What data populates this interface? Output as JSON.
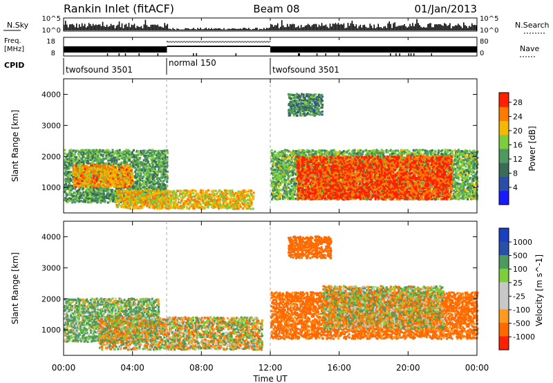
{
  "header": {
    "station": "Rankin Inlet (fitACF)",
    "beam": "Beam 08",
    "date": "01/Jan/2013"
  },
  "top_panels": {
    "nsky_label": "N.Sky",
    "nsky_ticks": [
      "10^5",
      "10^0"
    ],
    "nsearch_ticks": [
      "10^5",
      "10^0"
    ],
    "nsearch_label": "N.Search",
    "freq_label": "Freq.",
    "freq_unit": "[MHz]",
    "freq_ticks": [
      "18",
      "8"
    ],
    "nave_ticks": [
      "80",
      "0"
    ],
    "nave_label": "Nave",
    "cpid_label": "CPID",
    "cpid_segments": [
      {
        "label": "twofsound 3501",
        "start": 0,
        "end": 6
      },
      {
        "label": "normal 150",
        "start": 6,
        "end": 12
      },
      {
        "label": "twofsound 3501",
        "start": 12,
        "end": 24
      }
    ]
  },
  "x_axis": {
    "label": "Time UT",
    "ticks": [
      "00:00",
      "04:00",
      "08:00",
      "12:00",
      "16:00",
      "20:00",
      "00:00"
    ]
  },
  "panels": {
    "y_label": "Slant Range [km]",
    "y_ticks": [
      "1000",
      "2000",
      "3000",
      "4000"
    ],
    "power_label": "Power [dB]",
    "power_ticks": [
      "28",
      "24",
      "20",
      "16",
      "12",
      "8",
      "4"
    ],
    "velocity_label": "Velocity [m s^-1]",
    "velocity_ticks": [
      "1000",
      "500",
      "100",
      "25",
      "-25",
      "-100",
      "-500",
      "-1000"
    ]
  },
  "chart_data": [
    {
      "type": "heatmap",
      "title": "Power",
      "xlabel": "Time UT",
      "ylabel": "Slant Range [km]",
      "xlim": [
        0,
        24
      ],
      "ylim": [
        180,
        4500
      ],
      "colorbar": {
        "label": "Power [dB]",
        "range": [
          0,
          32
        ],
        "colors": [
          "#1a1aff",
          "#2a4fa8",
          "#3d6b5a",
          "#4e9a5e",
          "#7ccf3a",
          "#f5b800",
          "#ff7a00",
          "#ff2000"
        ]
      },
      "regions": [
        {
          "x0": 0.0,
          "x1": 6.0,
          "r0": 500,
          "r1": 2200,
          "level": 14
        },
        {
          "x0": 0.5,
          "x1": 4.0,
          "r0": 1000,
          "r1": 1700,
          "level": 24
        },
        {
          "x0": 3.0,
          "x1": 11.0,
          "r0": 300,
          "r1": 900,
          "level": 22
        },
        {
          "x0": 12.0,
          "x1": 24.0,
          "r0": 600,
          "r1": 2200,
          "level": 16
        },
        {
          "x0": 13.5,
          "x1": 22.5,
          "r0": 600,
          "r1": 2000,
          "level": 29
        },
        {
          "x0": 13.0,
          "x1": 15.0,
          "r0": 3300,
          "r1": 4000,
          "level": 12
        }
      ]
    },
    {
      "type": "heatmap",
      "title": "Velocity",
      "xlabel": "Time UT",
      "ylabel": "Slant Range [km]",
      "xlim": [
        0,
        24
      ],
      "ylim": [
        180,
        4500
      ],
      "colorbar": {
        "label": "Velocity [m s^-1]",
        "range": [
          -1000,
          1000
        ],
        "colors": [
          "#ff2000",
          "#ff6a00",
          "#ff9a20",
          "#c8c8c8",
          "#c8c8c8",
          "#7ccf3a",
          "#4e9a5e",
          "#2a4fa8",
          "#1a3fbf"
        ]
      },
      "regions": [
        {
          "x0": 0.0,
          "x1": 5.5,
          "r0": 600,
          "r1": 2000,
          "level": 120
        },
        {
          "x0": 2.0,
          "x1": 11.5,
          "r0": 350,
          "r1": 1400,
          "level": 0
        },
        {
          "x0": 12.0,
          "x1": 24.0,
          "r0": 700,
          "r1": 2200,
          "level": -250
        },
        {
          "x0": 15.0,
          "x1": 22.0,
          "r0": 1000,
          "r1": 2400,
          "level": 0
        },
        {
          "x0": 13.0,
          "x1": 15.5,
          "r0": 3300,
          "r1": 4000,
          "level": -300
        }
      ]
    }
  ]
}
